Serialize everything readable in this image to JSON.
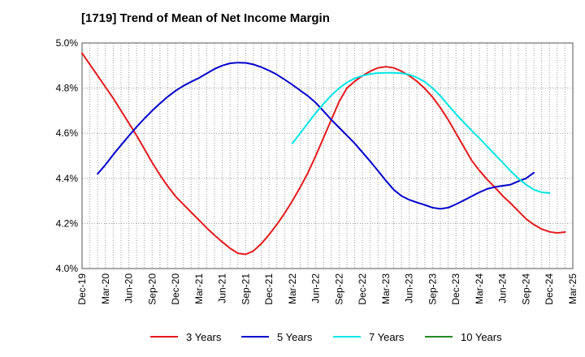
{
  "chart_data": {
    "type": "line",
    "title": "[1719]  Trend of Mean of Net Income Margin",
    "xlabel": "",
    "ylabel": "",
    "ylim": [
      4.0,
      5.0
    ],
    "yticks": [
      "5.0%",
      "4.8%",
      "4.6%",
      "4.4%",
      "4.2%",
      "4.0%"
    ],
    "ytick_values": [
      5.0,
      4.8,
      4.6,
      4.4,
      4.2,
      4.0
    ],
    "xticks": [
      "Dec-19",
      "Mar-20",
      "Jun-20",
      "Sep-20",
      "Dec-20",
      "Mar-21",
      "Jun-21",
      "Sep-21",
      "Dec-21",
      "Mar-22",
      "Jun-22",
      "Sep-22",
      "Dec-22",
      "Mar-23",
      "Jun-23",
      "Sep-23",
      "Dec-23",
      "Mar-24",
      "Jun-24",
      "Sep-24",
      "Dec-24",
      "Mar-25"
    ],
    "grid": true,
    "legend_position": "bottom",
    "series": [
      {
        "name": "3 Years",
        "color": "#e41a1c",
        "start_index": 0,
        "values": [
          4.955,
          4.905,
          4.855,
          4.805,
          4.755,
          4.7,
          4.645,
          4.59,
          4.53,
          4.47,
          4.415,
          4.365,
          4.32,
          4.285,
          4.25,
          4.215,
          4.18,
          4.148,
          4.118,
          4.09,
          4.068,
          4.063,
          4.078,
          4.11,
          4.15,
          4.195,
          4.245,
          4.3,
          4.36,
          4.425,
          4.5,
          4.58,
          4.66,
          4.74,
          4.8,
          4.83,
          4.855,
          4.875,
          4.89,
          4.895,
          4.89,
          4.875,
          4.855,
          4.83,
          4.798,
          4.76,
          4.713,
          4.66,
          4.6,
          4.54,
          4.48,
          4.435,
          4.395,
          4.36,
          4.322,
          4.29,
          4.255,
          4.22,
          4.195,
          4.175,
          4.163,
          4.158,
          4.162
        ]
      },
      {
        "name": "5 Years",
        "color": "#0000cd",
        "start_index": 2,
        "values": [
          4.42,
          4.46,
          4.505,
          4.547,
          4.588,
          4.628,
          4.665,
          4.7,
          4.732,
          4.762,
          4.788,
          4.81,
          4.828,
          4.845,
          4.865,
          4.885,
          4.9,
          4.91,
          4.913,
          4.912,
          4.905,
          4.893,
          4.878,
          4.86,
          4.838,
          4.815,
          4.79,
          4.765,
          4.735,
          4.698,
          4.66,
          4.625,
          4.59,
          4.555,
          4.515,
          4.475,
          4.433,
          4.39,
          4.35,
          4.322,
          4.305,
          4.293,
          4.282,
          4.27,
          4.265,
          4.27,
          4.285,
          4.302,
          4.32,
          4.338,
          4.353,
          4.362,
          4.367,
          4.372,
          4.387,
          4.4,
          4.425
        ]
      },
      {
        "name": "7 Years",
        "color": "#00e5e5",
        "start_index": 27,
        "values": [
          4.555,
          4.6,
          4.645,
          4.69,
          4.73,
          4.768,
          4.8,
          4.825,
          4.843,
          4.855,
          4.863,
          4.867,
          4.868,
          4.868,
          4.866,
          4.86,
          4.847,
          4.828,
          4.8,
          4.765,
          4.725,
          4.685,
          4.648,
          4.612,
          4.578,
          4.542,
          4.505,
          4.47,
          4.433,
          4.4,
          4.372,
          4.35,
          4.338,
          4.335
        ]
      },
      {
        "name": "10 Years",
        "color": "#228b22",
        "start_index": 0,
        "values": []
      }
    ]
  }
}
